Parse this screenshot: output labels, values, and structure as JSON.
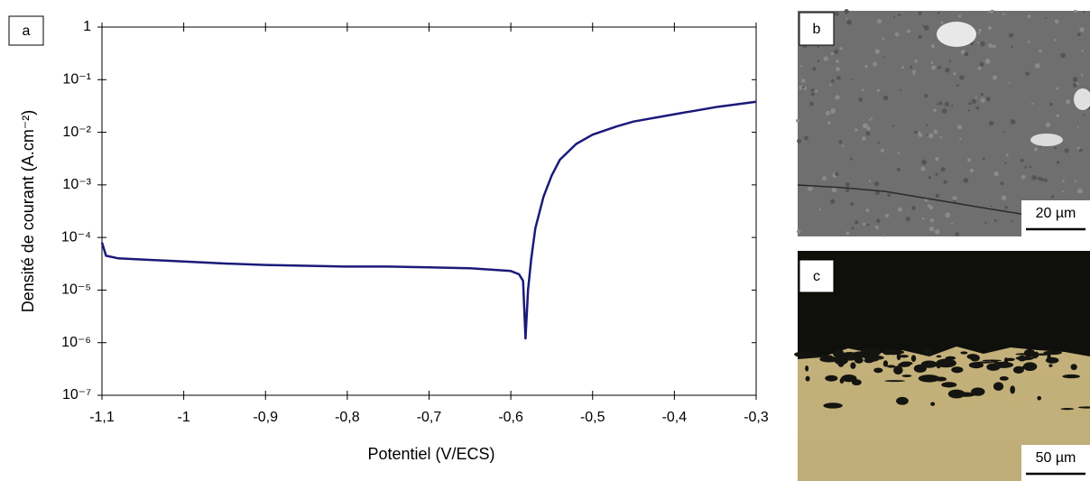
{
  "panels": [
    {
      "label": "a"
    },
    {
      "label": "b",
      "scale_bar": "20 µm"
    },
    {
      "label": "c",
      "scale_bar": "50 µm"
    }
  ],
  "chart_data": {
    "type": "line",
    "x_label": "Potentiel (V/ECS)",
    "y_label": "Densité de courant (A.cm⁻²)",
    "color": "#1a1a7a",
    "log_y": true,
    "grid": false,
    "xlim": [
      -1.1,
      -0.3
    ],
    "xticks": [
      {
        "value": -1.1,
        "label": "-1,1"
      },
      {
        "value": -1,
        "label": "-1"
      },
      {
        "value": -0.9,
        "label": "-0,9"
      },
      {
        "value": -0.8,
        "label": "-0,8"
      },
      {
        "value": -0.7,
        "label": "-0,7"
      },
      {
        "value": -0.6,
        "label": "-0,6"
      },
      {
        "value": -0.5,
        "label": "-0,5"
      },
      {
        "value": -0.4,
        "label": "-0,4"
      },
      {
        "value": -0.3,
        "label": "-0,3"
      }
    ],
    "ylim": [
      1e-07,
      1
    ],
    "yticks": [
      1,
      {
        "value": 0.1,
        "label": "10⁻¹"
      },
      {
        "value": 0.01,
        "label": "10⁻²"
      },
      {
        "value": 0.001,
        "label": "10⁻³"
      },
      {
        "value": 0.0001,
        "label": "10⁻⁴"
      },
      {
        "value": 1e-05,
        "label": "10⁻⁵"
      },
      {
        "value": 1e-06,
        "label": "10⁻⁶"
      },
      {
        "value": 1e-07,
        "label": "10⁻⁷"
      }
    ],
    "x": [
      -1.1,
      -1.095,
      -1.08,
      -1.05,
      -1.0,
      -0.95,
      -0.9,
      -0.85,
      -0.8,
      -0.75,
      -0.7,
      -0.65,
      -0.6,
      -0.59,
      -0.585,
      -0.582,
      -0.579,
      -0.575,
      -0.57,
      -0.56,
      -0.55,
      -0.54,
      -0.52,
      -0.5,
      -0.47,
      -0.45,
      -0.4,
      -0.35,
      -0.3
    ],
    "values": [
      8e-05,
      4.5e-05,
      4e-05,
      3.8e-05,
      3.5e-05,
      3.2e-05,
      3e-05,
      2.9e-05,
      2.8e-05,
      2.8e-05,
      2.7e-05,
      2.6e-05,
      2.3e-05,
      2e-05,
      1.5e-05,
      1.2e-06,
      1e-05,
      4e-05,
      0.00015,
      0.0006,
      0.0015,
      0.003,
      0.006,
      0.009,
      0.013,
      0.016,
      0.022,
      0.03,
      0.038
    ]
  }
}
